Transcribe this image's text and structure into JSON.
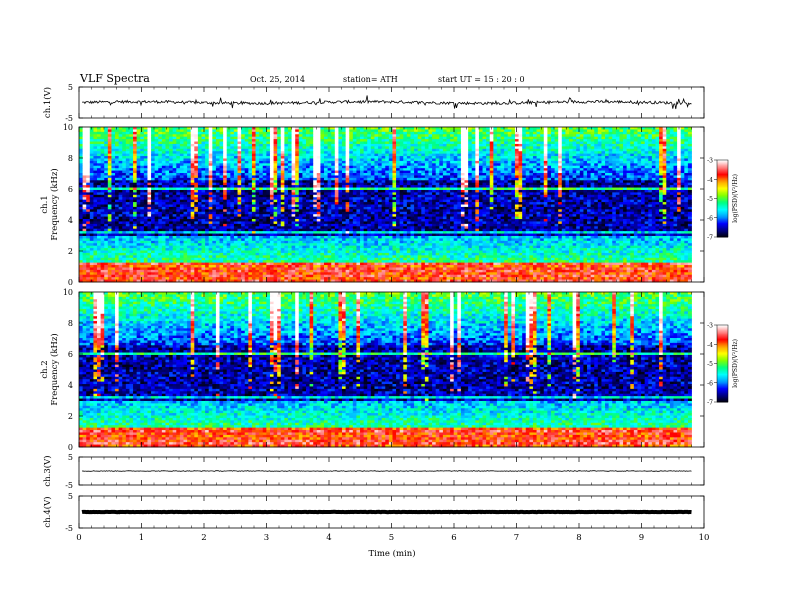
{
  "header": {
    "title": "VLF  Spectra",
    "date": "Oct. 25, 2014",
    "station": "station= ATH",
    "start_ut": "start  UT  =    15 : 20 : 0"
  },
  "chart_data": {
    "type": "heatmap",
    "xlabel": "Time  (min)",
    "xlim": [
      0,
      10
    ],
    "x_data_end": 9.8,
    "x_ticks": [
      "0",
      "1",
      "2",
      "3",
      "4",
      "5",
      "6",
      "7",
      "8",
      "9",
      "10"
    ],
    "panels": [
      {
        "id": "ch1-waveform",
        "type": "line",
        "ylabel": "ch.1(V)",
        "ylim": [
          -5,
          5
        ],
        "y_ticks": [
          "5",
          "-5"
        ],
        "baseline": 0,
        "noise": 0.45,
        "spikes": 0.9
      },
      {
        "id": "ch1-spectrogram",
        "type": "heatmap",
        "ylabel_top": "ch.1",
        "ylabel": "Frequency  (kHz)",
        "ylim": [
          0,
          10
        ],
        "y_ticks": [
          "0",
          "2",
          "4",
          "6",
          "8",
          "10"
        ],
        "colorbar": {
          "label": "log(PSD)(V²/Hz)",
          "range": [
            -7,
            -3
          ],
          "ticks": [
            "-3",
            "-4",
            "-5",
            "-6",
            "-7"
          ]
        }
      },
      {
        "id": "ch2-spectrogram",
        "type": "heatmap",
        "ylabel_top": "ch.2",
        "ylabel": "Frequency  (kHz)",
        "ylim": [
          0,
          10
        ],
        "y_ticks": [
          "0",
          "2",
          "4",
          "6",
          "8",
          "10"
        ],
        "colorbar": {
          "label": "log(PSD)(V²/Hz)",
          "range": [
            -7,
            -3
          ],
          "ticks": [
            "-3",
            "-4",
            "-5",
            "-6",
            "-7"
          ]
        }
      },
      {
        "id": "ch3-waveform",
        "type": "line",
        "ylabel": "ch.3(V)",
        "ylim": [
          -5,
          5
        ],
        "y_ticks": [
          "5",
          "-5"
        ],
        "baseline": 0,
        "noise": 0.12,
        "spikes": 0
      },
      {
        "id": "ch4-waveform",
        "type": "line",
        "ylabel": "ch.4(V)",
        "ylim": [
          -5,
          5
        ],
        "y_ticks": [
          "5",
          "-5"
        ],
        "baseline": 0,
        "noise": 0.05,
        "spikes": 0,
        "thick": true
      }
    ],
    "colors": {
      "colormap": [
        "#000000",
        "#000080",
        "#0000ff",
        "#00a0ff",
        "#00ffff",
        "#00ff80",
        "#80ff00",
        "#ffff00",
        "#ffa000",
        "#ff0000",
        "#ff8080",
        "#ffffff"
      ]
    }
  }
}
